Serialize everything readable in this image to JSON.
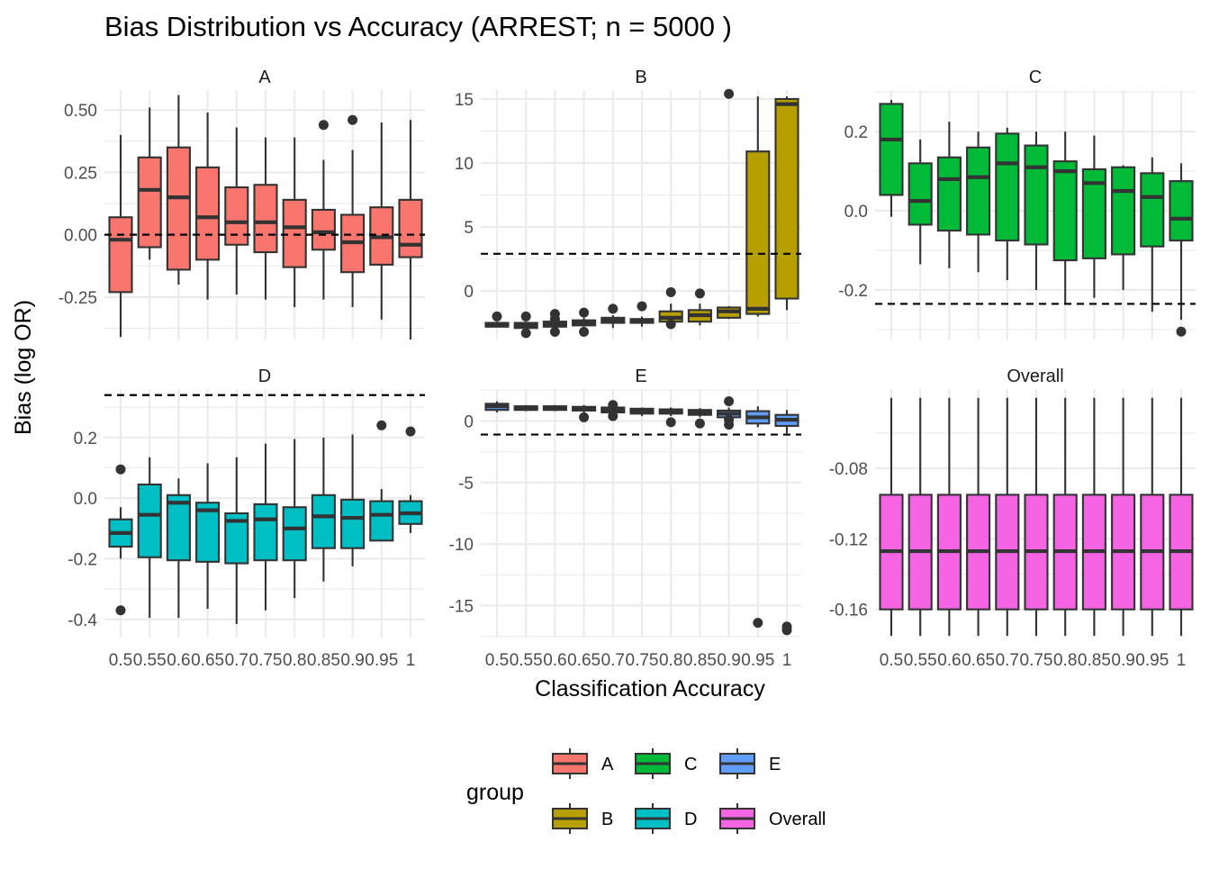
{
  "chart_data": {
    "type": "boxplot",
    "title": "Bias Distribution vs Accuracy (ARREST; n = 5000 )",
    "xlabel": "Classification Accuracy",
    "ylabel": "Bias (log OR)",
    "facet_layout": "2 rows x 3 columns, shared x, free y",
    "categories": [
      "0.5",
      "0.55",
      "0.6",
      "0.65",
      "0.7",
      "0.75",
      "0.8",
      "0.85",
      "0.9",
      "0.95",
      "1"
    ],
    "legend": {
      "title": "group",
      "position": "bottom",
      "entries": [
        {
          "label": "A",
          "color": "#F8766D"
        },
        {
          "label": "C",
          "color": "#00BA38"
        },
        {
          "label": "E",
          "color": "#619CFF"
        },
        {
          "label": "B",
          "color": "#B79F00"
        },
        {
          "label": "D",
          "color": "#00BFC4"
        },
        {
          "label": "Overall",
          "color": "#F564E3"
        }
      ]
    },
    "grid": true,
    "panels": [
      {
        "name": "A",
        "color": "#F8766D",
        "ylim": [
          -0.42,
          0.58
        ],
        "yticks": [
          -0.25,
          0,
          0.25,
          0.5
        ],
        "ytick_labels": [
          "-0.25",
          "0.00",
          "0.25",
          "0.50"
        ],
        "hline": 0,
        "show_x_ticks": false,
        "boxes": [
          {
            "min": -0.41,
            "q1": -0.23,
            "median": -0.02,
            "q3": 0.07,
            "max": 0.4,
            "outliers": []
          },
          {
            "min": -0.1,
            "q1": -0.05,
            "median": 0.18,
            "q3": 0.31,
            "max": 0.51,
            "outliers": []
          },
          {
            "min": -0.2,
            "q1": -0.14,
            "median": 0.15,
            "q3": 0.35,
            "max": 0.56,
            "outliers": []
          },
          {
            "min": -0.26,
            "q1": -0.1,
            "median": 0.07,
            "q3": 0.27,
            "max": 0.49,
            "outliers": []
          },
          {
            "min": -0.24,
            "q1": -0.04,
            "median": 0.05,
            "q3": 0.19,
            "max": 0.43,
            "outliers": []
          },
          {
            "min": -0.26,
            "q1": -0.07,
            "median": 0.05,
            "q3": 0.2,
            "max": 0.39,
            "outliers": []
          },
          {
            "min": -0.29,
            "q1": -0.13,
            "median": 0.03,
            "q3": 0.14,
            "max": 0.39,
            "outliers": []
          },
          {
            "min": -0.26,
            "q1": -0.06,
            "median": 0.01,
            "q3": 0.1,
            "max": 0.3,
            "outliers": [
              0.44
            ]
          },
          {
            "min": -0.29,
            "q1": -0.15,
            "median": -0.03,
            "q3": 0.08,
            "max": 0.34,
            "outliers": [
              0.46
            ]
          },
          {
            "min": -0.34,
            "q1": -0.12,
            "median": -0.01,
            "q3": 0.11,
            "max": 0.45,
            "outliers": []
          },
          {
            "min": -0.42,
            "q1": -0.09,
            "median": -0.04,
            "q3": 0.14,
            "max": 0.46,
            "outliers": []
          }
        ]
      },
      {
        "name": "B",
        "color": "#B79F00",
        "ylim": [
          -3.8,
          15.7
        ],
        "yticks": [
          0,
          5,
          10,
          15
        ],
        "ytick_labels": [
          "0",
          "5",
          "10",
          "15"
        ],
        "hline": 2.9,
        "show_x_ticks": false,
        "boxes": [
          {
            "min": -2.8,
            "q1": -2.8,
            "median": -2.7,
            "q3": -2.5,
            "max": -2.4,
            "outliers": [
              -2.0
            ]
          },
          {
            "min": -2.9,
            "q1": -2.9,
            "median": -2.7,
            "q3": -2.5,
            "max": -2.4,
            "outliers": [
              -2.0,
              -3.3
            ]
          },
          {
            "min": -2.9,
            "q1": -2.8,
            "median": -2.6,
            "q3": -2.4,
            "max": -2.3,
            "outliers": [
              -1.8,
              -2.2,
              -3.2
            ]
          },
          {
            "min": -2.8,
            "q1": -2.7,
            "median": -2.5,
            "q3": -2.3,
            "max": -2.1,
            "outliers": [
              -1.7,
              -3.2
            ]
          },
          {
            "min": -2.9,
            "q1": -2.5,
            "median": -2.3,
            "q3": -2.1,
            "max": -1.9,
            "outliers": [
              -1.4
            ]
          },
          {
            "min": -2.8,
            "q1": -2.5,
            "median": -2.3,
            "q3": -2.2,
            "max": -2.0,
            "outliers": [
              -1.2
            ]
          },
          {
            "min": -2.8,
            "q1": -2.4,
            "median": -2.1,
            "q3": -1.6,
            "max": -1.0,
            "outliers": [
              -0.1,
              -2.6
            ]
          },
          {
            "min": -2.7,
            "q1": -2.4,
            "median": -1.9,
            "q3": -1.5,
            "max": -1.0,
            "outliers": [
              -0.2
            ]
          },
          {
            "min": -2.2,
            "q1": -2.1,
            "median": -1.6,
            "q3": -1.3,
            "max": -1.2,
            "outliers": [
              15.4
            ]
          },
          {
            "min": -2.0,
            "q1": -1.8,
            "median": -1.4,
            "q3": 10.9,
            "max": 15.2,
            "outliers": []
          },
          {
            "min": -1.5,
            "q1": -0.6,
            "median": 14.6,
            "q3": 15.0,
            "max": 15.2,
            "outliers": []
          }
        ]
      },
      {
        "name": "C",
        "color": "#00BA38",
        "ylim": [
          -0.325,
          0.305
        ],
        "yticks": [
          -0.2,
          0,
          0.2
        ],
        "ytick_labels": [
          "-0.2",
          "0.0",
          "0.2"
        ],
        "hline": -0.235,
        "show_x_ticks": false,
        "boxes": [
          {
            "min": -0.015,
            "q1": 0.04,
            "median": 0.18,
            "q3": 0.27,
            "max": 0.28,
            "outliers": []
          },
          {
            "min": -0.135,
            "q1": -0.035,
            "median": 0.025,
            "q3": 0.12,
            "max": 0.18,
            "outliers": []
          },
          {
            "min": -0.145,
            "q1": -0.05,
            "median": 0.08,
            "q3": 0.135,
            "max": 0.225,
            "outliers": []
          },
          {
            "min": -0.155,
            "q1": -0.06,
            "median": 0.085,
            "q3": 0.16,
            "max": 0.2,
            "outliers": []
          },
          {
            "min": -0.175,
            "q1": -0.075,
            "median": 0.12,
            "q3": 0.195,
            "max": 0.21,
            "outliers": []
          },
          {
            "min": -0.2,
            "q1": -0.085,
            "median": 0.11,
            "q3": 0.165,
            "max": 0.2,
            "outliers": []
          },
          {
            "min": -0.235,
            "q1": -0.125,
            "median": 0.1,
            "q3": 0.125,
            "max": 0.2,
            "outliers": []
          },
          {
            "min": -0.22,
            "q1": -0.12,
            "median": 0.07,
            "q3": 0.105,
            "max": 0.19,
            "outliers": []
          },
          {
            "min": -0.2,
            "q1": -0.11,
            "median": 0.05,
            "q3": 0.11,
            "max": 0.115,
            "outliers": []
          },
          {
            "min": -0.255,
            "q1": -0.09,
            "median": 0.035,
            "q3": 0.095,
            "max": 0.135,
            "outliers": []
          },
          {
            "min": -0.275,
            "q1": -0.075,
            "median": -0.02,
            "q3": 0.075,
            "max": 0.12,
            "outliers": [
              -0.305
            ]
          }
        ]
      },
      {
        "name": "D",
        "color": "#00BFC4",
        "ylim": [
          -0.46,
          0.36
        ],
        "yticks": [
          -0.4,
          -0.2,
          0,
          0.2
        ],
        "ytick_labels": [
          "-0.4",
          "-0.2",
          "0.0",
          "0.2"
        ],
        "hline": 0.34,
        "show_x_ticks": true,
        "boxes": [
          {
            "min": -0.2,
            "q1": -0.16,
            "median": -0.115,
            "q3": -0.07,
            "max": -0.03,
            "outliers": [
              0.095,
              -0.37
            ]
          },
          {
            "min": -0.395,
            "q1": -0.195,
            "median": -0.055,
            "q3": 0.045,
            "max": 0.135,
            "outliers": []
          },
          {
            "min": -0.395,
            "q1": -0.205,
            "median": -0.015,
            "q3": 0.01,
            "max": 0.065,
            "outliers": []
          },
          {
            "min": -0.365,
            "q1": -0.21,
            "median": -0.04,
            "q3": -0.015,
            "max": 0.115,
            "outliers": []
          },
          {
            "min": -0.415,
            "q1": -0.215,
            "median": -0.075,
            "q3": -0.05,
            "max": 0.135,
            "outliers": []
          },
          {
            "min": -0.37,
            "q1": -0.205,
            "median": -0.07,
            "q3": -0.02,
            "max": 0.18,
            "outliers": []
          },
          {
            "min": -0.33,
            "q1": -0.205,
            "median": -0.1,
            "q3": -0.03,
            "max": 0.195,
            "outliers": []
          },
          {
            "min": -0.275,
            "q1": -0.165,
            "median": -0.06,
            "q3": 0.01,
            "max": 0.2,
            "outliers": []
          },
          {
            "min": -0.225,
            "q1": -0.165,
            "median": -0.065,
            "q3": -0.005,
            "max": 0.21,
            "outliers": []
          },
          {
            "min": -0.14,
            "q1": -0.14,
            "median": -0.055,
            "q3": -0.01,
            "max": 0.03,
            "outliers": [
              0.24
            ]
          },
          {
            "min": -0.115,
            "q1": -0.085,
            "median": -0.05,
            "q3": -0.01,
            "max": 0.01,
            "outliers": [
              0.22
            ]
          }
        ]
      },
      {
        "name": "E",
        "color": "#619CFF",
        "ylim": [
          -17.6,
          2.6
        ],
        "yticks": [
          -15,
          -10,
          -5,
          0
        ],
        "ytick_labels": [
          "-15",
          "-10",
          "-5",
          "0"
        ],
        "hline": -1.1,
        "show_x_ticks": true,
        "boxes": [
          {
            "min": 0.7,
            "q1": 0.9,
            "median": 1.2,
            "q3": 1.4,
            "max": 1.6,
            "outliers": []
          },
          {
            "min": 0.8,
            "q1": 0.9,
            "median": 1.05,
            "q3": 1.2,
            "max": 1.3,
            "outliers": []
          },
          {
            "min": 0.8,
            "q1": 0.9,
            "median": 1.05,
            "q3": 1.2,
            "max": 1.3,
            "outliers": []
          },
          {
            "min": 0.6,
            "q1": 0.85,
            "median": 1.0,
            "q3": 1.15,
            "max": 1.3,
            "outliers": [
              0.3
            ]
          },
          {
            "min": 0.5,
            "q1": 0.7,
            "median": 0.9,
            "q3": 1.1,
            "max": 1.3,
            "outliers": [
              0.4,
              1.3
            ]
          },
          {
            "min": 0.4,
            "q1": 0.6,
            "median": 0.8,
            "q3": 1.0,
            "max": 1.1,
            "outliers": []
          },
          {
            "min": 0.4,
            "q1": 0.6,
            "median": 0.8,
            "q3": 0.95,
            "max": 1.1,
            "outliers": [
              -0.1
            ]
          },
          {
            "min": 0.3,
            "q1": 0.5,
            "median": 0.7,
            "q3": 0.9,
            "max": 1.05,
            "outliers": [
              -0.2
            ]
          },
          {
            "min": 0.0,
            "q1": 0.3,
            "median": 0.6,
            "q3": 0.85,
            "max": 1.1,
            "outliers": [
              -0.3,
              1.6,
              0.1
            ]
          },
          {
            "min": -0.5,
            "q1": -0.2,
            "median": 0.3,
            "q3": 0.8,
            "max": 1.2,
            "outliers": [
              -16.4
            ]
          },
          {
            "min": -1.0,
            "q1": -0.4,
            "median": 0.1,
            "q3": 0.5,
            "max": 0.9,
            "outliers": [
              -16.7,
              -17.0
            ]
          }
        ]
      },
      {
        "name": "Overall",
        "color": "#F564E3",
        "ylim": [
          -0.176,
          -0.035
        ],
        "yticks": [
          -0.16,
          -0.12,
          -0.08
        ],
        "ytick_labels": [
          "-0.16",
          "-0.12",
          "-0.08"
        ],
        "hline": null,
        "show_x_ticks": true,
        "boxes": [
          {
            "min": -0.175,
            "q1": -0.16,
            "median": -0.127,
            "q3": -0.095,
            "max": -0.04,
            "outliers": []
          },
          {
            "min": -0.175,
            "q1": -0.16,
            "median": -0.127,
            "q3": -0.095,
            "max": -0.04,
            "outliers": []
          },
          {
            "min": -0.175,
            "q1": -0.16,
            "median": -0.127,
            "q3": -0.095,
            "max": -0.04,
            "outliers": []
          },
          {
            "min": -0.175,
            "q1": -0.16,
            "median": -0.127,
            "q3": -0.095,
            "max": -0.04,
            "outliers": []
          },
          {
            "min": -0.175,
            "q1": -0.16,
            "median": -0.127,
            "q3": -0.095,
            "max": -0.04,
            "outliers": []
          },
          {
            "min": -0.175,
            "q1": -0.16,
            "median": -0.127,
            "q3": -0.095,
            "max": -0.04,
            "outliers": []
          },
          {
            "min": -0.175,
            "q1": -0.16,
            "median": -0.127,
            "q3": -0.095,
            "max": -0.04,
            "outliers": []
          },
          {
            "min": -0.175,
            "q1": -0.16,
            "median": -0.127,
            "q3": -0.095,
            "max": -0.04,
            "outliers": []
          },
          {
            "min": -0.175,
            "q1": -0.16,
            "median": -0.127,
            "q3": -0.095,
            "max": -0.04,
            "outliers": []
          },
          {
            "min": -0.175,
            "q1": -0.16,
            "median": -0.127,
            "q3": -0.095,
            "max": -0.04,
            "outliers": []
          },
          {
            "min": -0.175,
            "q1": -0.16,
            "median": -0.127,
            "q3": -0.095,
            "max": -0.04,
            "outliers": []
          }
        ]
      }
    ]
  }
}
